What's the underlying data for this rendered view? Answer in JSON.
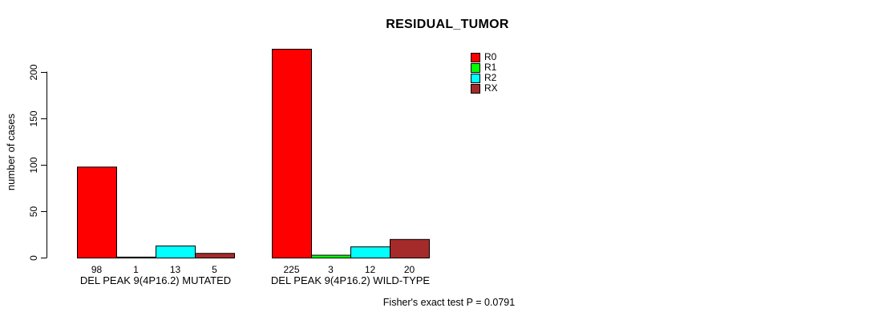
{
  "background_color": "#ffffff",
  "chart_data": {
    "type": "bar",
    "title": "RESIDUAL_TUMOR",
    "ylabel": "number of cases",
    "xlabel": "",
    "categories": [
      "DEL PEAK 9(4P16.2) MUTATED",
      "DEL PEAK 9(4P16.2) WILD-TYPE"
    ],
    "series": [
      {
        "name": "R0",
        "color": "#ff0000",
        "values": [
          98,
          225
        ]
      },
      {
        "name": "R1",
        "color": "#00ff00",
        "values": [
          1,
          3
        ]
      },
      {
        "name": "R2",
        "color": "#00ffff",
        "values": [
          13,
          12
        ]
      },
      {
        "name": "RX",
        "color": "#a52a2a",
        "values": [
          5,
          20
        ]
      }
    ],
    "bar_value_labels": [
      [
        "98",
        "1",
        "13",
        "5"
      ],
      [
        "225",
        "3",
        "12",
        "20"
      ]
    ],
    "bar_border_color": "#000000",
    "yticks": [
      0,
      50,
      100,
      150,
      200
    ],
    "ylim": [
      0,
      225
    ],
    "grid": false,
    "legend_position": "top-right",
    "show_value_labels": true,
    "annotation": "Fisher's exact test P = 0.0791"
  }
}
